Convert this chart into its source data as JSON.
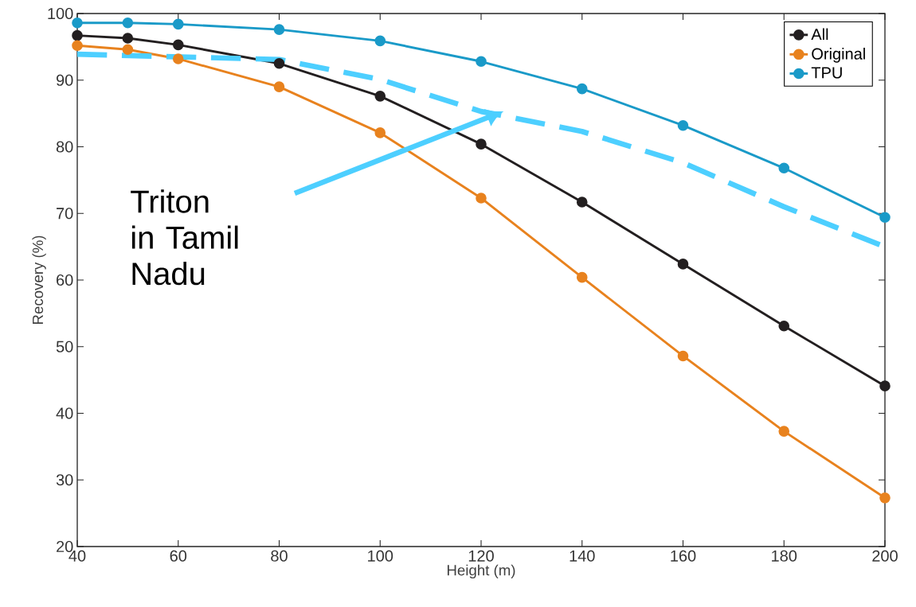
{
  "chart_data": {
    "type": "line",
    "xlabel": "Height (m)",
    "ylabel": "Recovery (%)",
    "x": [
      40,
      50,
      60,
      80,
      100,
      120,
      140,
      160,
      180,
      200
    ],
    "series": [
      {
        "name": "All",
        "color": "#231f20",
        "values": [
          96.7,
          96.3,
          95.3,
          92.5,
          87.6,
          80.4,
          71.7,
          62.4,
          53.1,
          44.1
        ]
      },
      {
        "name": "Original",
        "color": "#e8821e",
        "values": [
          95.2,
          94.6,
          93.2,
          89.0,
          82.1,
          72.3,
          60.4,
          48.6,
          37.3,
          27.3
        ]
      },
      {
        "name": "TPU",
        "color": "#1a9ac8",
        "values": [
          98.6,
          98.6,
          98.4,
          97.6,
          95.9,
          92.8,
          88.7,
          83.2,
          76.8,
          69.4
        ]
      },
      {
        "type": "line",
        "color": "#4dcfff",
        "x": [
          40,
          80,
          100,
          120,
          140,
          160,
          180,
          200
        ],
        "values": [
          93.9,
          93.1,
          90.1,
          85.3,
          82.3,
          77.6,
          71.0,
          65.0
        ],
        "line_style": "dashed",
        "marker": "none"
      }
    ],
    "xlim": [
      40,
      200
    ],
    "ylim": [
      20,
      100
    ],
    "xticks": [
      40,
      60,
      80,
      100,
      120,
      140,
      160,
      180,
      200
    ],
    "yticks": [
      20,
      30,
      40,
      50,
      60,
      70,
      80,
      90,
      100
    ],
    "marker": "circle",
    "grid": false,
    "legend": "top right",
    "annotations": [
      "Triton in Tamil Nadu"
    ]
  }
}
